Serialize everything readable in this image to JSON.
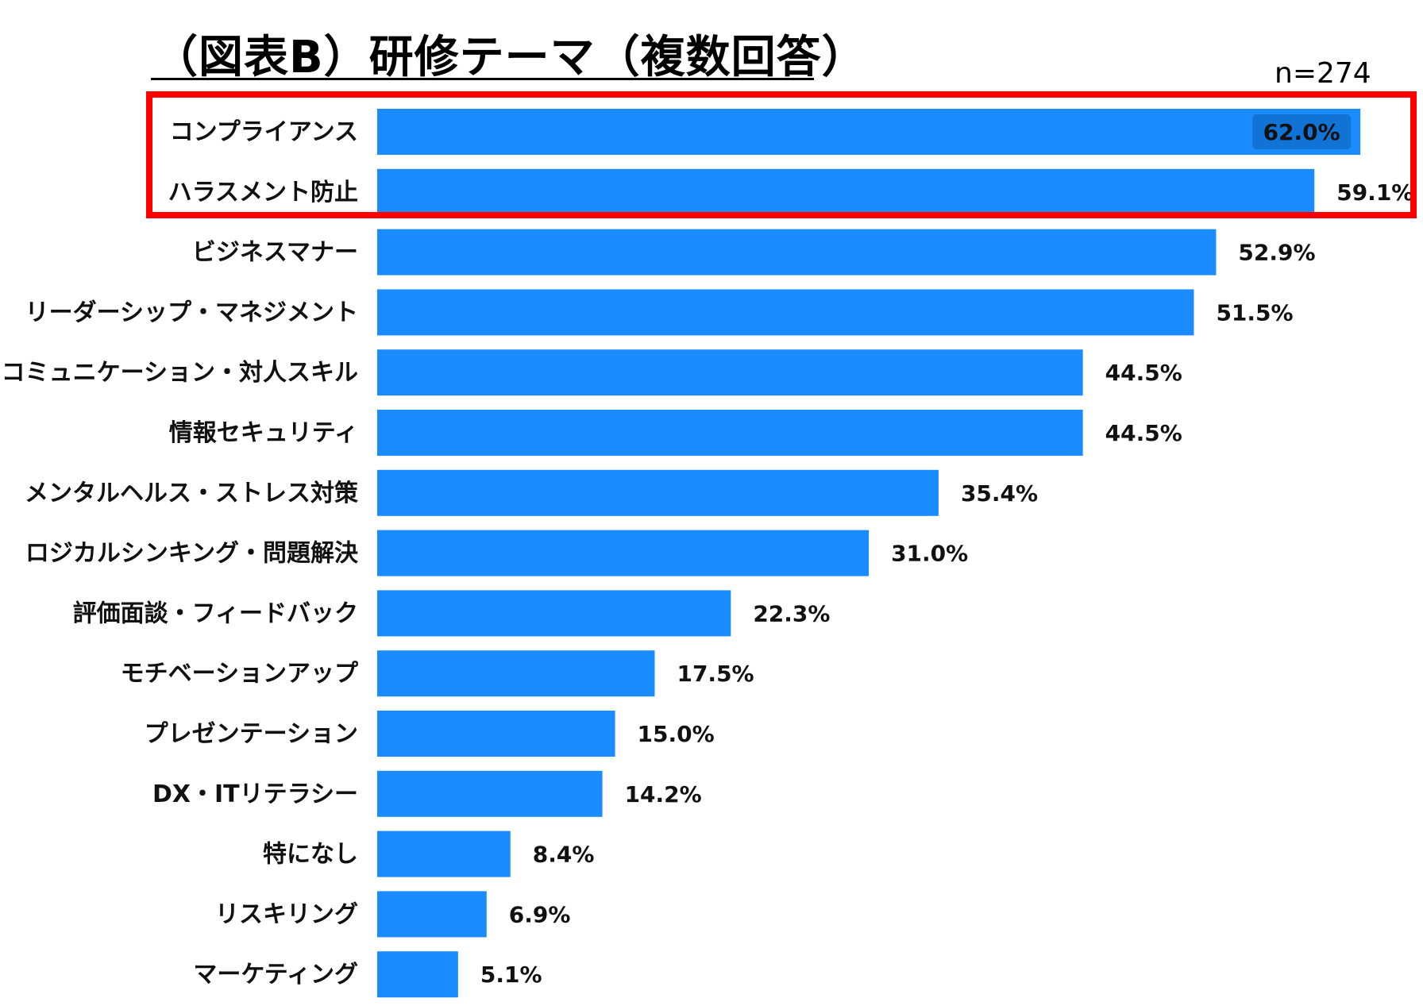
{
  "title": "（図表B）研修テーマ（複数回答）",
  "sample_size": "n=274",
  "colors": {
    "bar": "#1a8cff",
    "highlight_box": "#ff0000",
    "inbar_label_bg": "#1273d6"
  },
  "chart_data": {
    "type": "bar",
    "orientation": "horizontal",
    "categories": [
      "コンプライアンス",
      "ハラスメント防止",
      "ビジネスマナー",
      "リーダーシップ・マネジメント",
      "コミュニケーション・対人スキル",
      "情報セキュリティ",
      "メンタルヘルス・ストレス対策",
      "ロジカルシンキング・問題解決",
      "評価面談・フィードバック",
      "モチベーションアップ",
      "プレゼンテーション",
      "DX・ITリテラシー",
      "特になし",
      "リスキリング",
      "マーケティング"
    ],
    "values": [
      62.0,
      59.1,
      52.9,
      51.5,
      44.5,
      44.5,
      35.4,
      31.0,
      22.3,
      17.5,
      15.0,
      14.2,
      8.4,
      6.9,
      5.1
    ],
    "value_labels": [
      "62.0%",
      "59.1%",
      "52.9%",
      "51.5%",
      "44.5%",
      "44.5%",
      "35.4%",
      "31.0%",
      "22.3%",
      "17.5%",
      "15.0%",
      "14.2%",
      "8.4%",
      "6.9%",
      "5.1%"
    ],
    "highlighted_categories": [
      "コンプライアンス",
      "ハラスメント防止"
    ],
    "grid": false,
    "legend": "none"
  }
}
